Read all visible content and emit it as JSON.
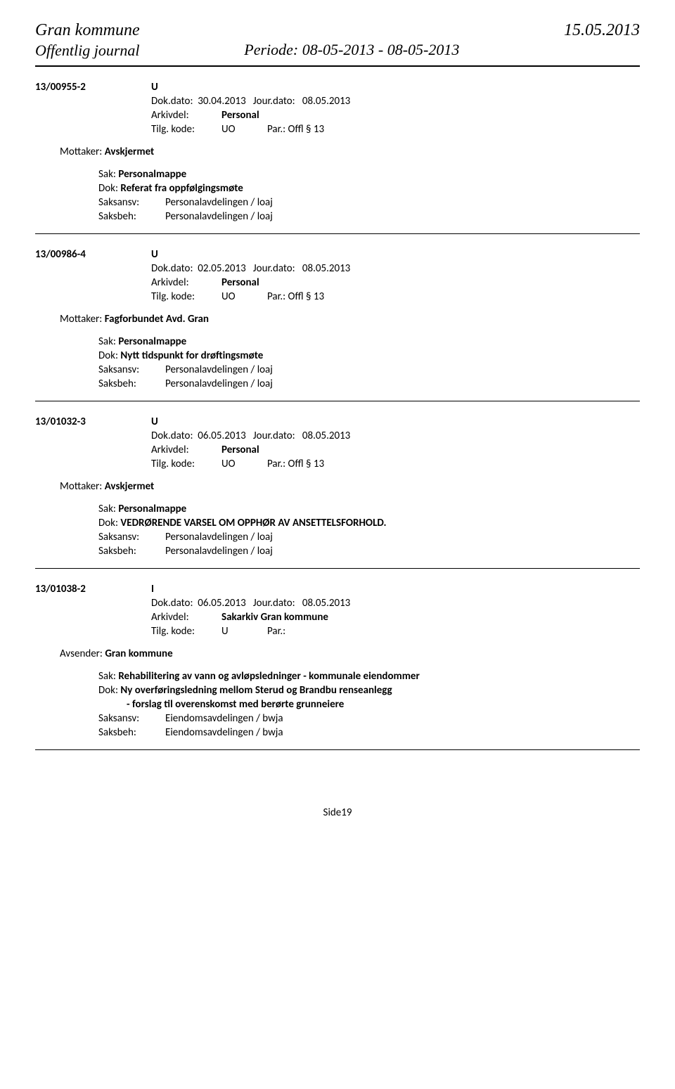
{
  "header": {
    "orgName": "Gran kommune",
    "journalTitle": "Offentlig journal",
    "periode": "Periode: 08-05-2013 - 08-05-2013",
    "dateRight": "15.05.2013"
  },
  "entries": [
    {
      "caseNum": "13/00955-2",
      "type": "U",
      "dokDato": "30.04.2013",
      "jourDato": "08.05.2013",
      "arkivdel": "Personal",
      "tilgKode": "UO",
      "par": "Offl § 13",
      "recipientLabel": "Mottaker:",
      "recipient": "Avskjermet",
      "sak": "Personalmappe",
      "dok": "Referat fra oppfølgingsmøte",
      "dokCont": "",
      "saksansv": "Personalavdelingen / loaj",
      "saksbeh": "Personalavdelingen / loaj"
    },
    {
      "caseNum": "13/00986-4",
      "type": "U",
      "dokDato": "02.05.2013",
      "jourDato": "08.05.2013",
      "arkivdel": "Personal",
      "tilgKode": "UO",
      "par": "Offl § 13",
      "recipientLabel": "Mottaker:",
      "recipient": "Fagforbundet Avd. Gran",
      "sak": "Personalmappe",
      "dok": "Nytt tidspunkt for drøftingsmøte",
      "dokCont": "",
      "saksansv": "Personalavdelingen / loaj",
      "saksbeh": "Personalavdelingen / loaj"
    },
    {
      "caseNum": "13/01032-3",
      "type": "U",
      "dokDato": "06.05.2013",
      "jourDato": "08.05.2013",
      "arkivdel": "Personal",
      "tilgKode": "UO",
      "par": "Offl § 13",
      "recipientLabel": "Mottaker:",
      "recipient": "Avskjermet",
      "sak": "Personalmappe",
      "dok": "VEDRØRENDE VARSEL OM OPPHØR AV ANSETTELSFORHOLD.",
      "dokCont": "",
      "saksansv": "Personalavdelingen / loaj",
      "saksbeh": "Personalavdelingen / loaj"
    },
    {
      "caseNum": "13/01038-2",
      "type": "I",
      "dokDato": "06.05.2013",
      "jourDato": "08.05.2013",
      "arkivdel": "Sakarkiv Gran kommune",
      "tilgKode": "U",
      "par": "",
      "recipientLabel": "Avsender:",
      "recipient": "Gran kommune",
      "sak": "Rehabilitering av vann og avløpsledninger - kommunale eiendommer",
      "dok": "Ny overføringsledning mellom Sterud og Brandbu renseanlegg",
      "dokCont": "- forslag til overenskomst med berørte grunneiere",
      "saksansv": "Eiendomsavdelingen / bwja",
      "saksbeh": "Eiendomsavdelingen / bwja"
    }
  ],
  "labels": {
    "dokDato": "Dok.dato:",
    "jourDato": "Jour.dato:",
    "arkivdel": "Arkivdel:",
    "tilgKode": "Tilg. kode:",
    "par": "Par.:",
    "sak": "Sak:",
    "dok": "Dok:",
    "saksansv": "Saksansv:",
    "saksbeh": "Saksbeh:"
  },
  "pageNum": "Side19"
}
